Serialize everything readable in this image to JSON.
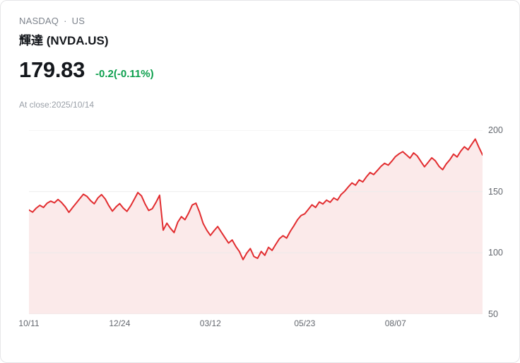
{
  "header": {
    "exchange": "NASDAQ",
    "separator": "·",
    "region": "US",
    "title": "輝達 (NVDA.US)",
    "price": "179.83",
    "change": "-0.2(-0.11%)",
    "close_note": "At close:2025/10/14"
  },
  "colors": {
    "line": "#e22d30",
    "area_fill": "#fbeaea",
    "gridline": "#ebebeb",
    "change_text": "#0ea04e",
    "text_primary": "#14171c",
    "text_secondary": "#7d838c",
    "axis_text": "#63676e",
    "card_border": "#e6e6e8"
  },
  "chart_data": {
    "type": "area",
    "title": "NVDA.US one-year price history",
    "x_tick_labels": [
      "10/11",
      "12/24",
      "03/12",
      "05/23",
      "08/07"
    ],
    "tick_indices": [
      0,
      25,
      50,
      76,
      101
    ],
    "y_ticks": [
      200,
      150,
      100,
      50
    ],
    "ylim": [
      50,
      200
    ],
    "last_close": 179.83,
    "values": [
      135.0,
      133.2,
      136.5,
      138.8,
      137.0,
      140.5,
      142.2,
      140.8,
      143.5,
      141.0,
      137.5,
      133.0,
      136.8,
      140.5,
      144.2,
      147.8,
      146.0,
      142.5,
      140.0,
      144.8,
      147.5,
      144.0,
      138.5,
      134.0,
      137.5,
      140.2,
      136.5,
      133.8,
      138.2,
      143.5,
      149.2,
      146.5,
      139.8,
      134.5,
      136.0,
      141.2,
      147.0,
      118.5,
      124.2,
      120.0,
      116.5,
      125.0,
      129.5,
      127.0,
      132.5,
      139.0,
      140.5,
      133.2,
      124.0,
      118.5,
      114.2,
      118.0,
      121.5,
      117.0,
      112.5,
      108.0,
      110.5,
      105.2,
      101.0,
      94.5,
      99.8,
      103.5,
      97.0,
      95.5,
      101.2,
      98.0,
      104.5,
      102.0,
      106.8,
      111.5,
      114.0,
      112.0,
      117.5,
      122.0,
      127.0,
      130.5,
      131.8,
      135.5,
      139.2,
      137.0,
      141.5,
      139.8,
      143.0,
      141.2,
      144.8,
      143.0,
      147.5,
      150.2,
      153.8,
      157.0,
      155.2,
      159.5,
      157.8,
      162.0,
      165.5,
      163.8,
      167.2,
      170.5,
      173.0,
      171.5,
      174.8,
      178.5,
      180.8,
      182.5,
      180.0,
      177.2,
      181.5,
      179.0,
      174.5,
      170.2,
      173.8,
      177.5,
      175.0,
      170.5,
      167.8,
      172.5,
      176.0,
      180.5,
      178.2,
      183.0,
      186.5,
      184.0,
      188.5,
      192.8,
      186.0,
      179.83
    ]
  }
}
